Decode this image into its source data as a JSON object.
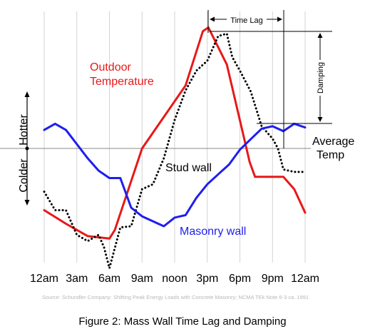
{
  "chart_data": {
    "type": "line",
    "caption": "Figure 2:  Mass Wall Time Lag and Damping",
    "source": "Source: Schundler Company: Shifting Peak Energy Loads with Concrete Masonry; NCMA TEk Note 6-3 ca. 1991",
    "x_ticks": [
      "12am",
      "3am",
      "6am",
      "9am",
      "noon",
      "3pm",
      "6pm",
      "9pm",
      "12am"
    ],
    "x_hours": [
      0,
      3,
      6,
      9,
      12,
      15,
      18,
      21,
      24
    ],
    "ylim": [
      -100,
      100
    ],
    "grid": "vertical",
    "y_axis_labels": {
      "up": "Hotter",
      "down": "Colder"
    },
    "baseline_label": [
      "Average",
      "Temp"
    ],
    "annotations": {
      "time_lag": "Time Lag",
      "damping": "Damping"
    },
    "series": [
      {
        "name": "Outdoor Temperature",
        "label_lines": [
          "Outdoor",
          "Temperature"
        ],
        "color": "#e81818",
        "style": "solid",
        "x": [
          0,
          2,
          4,
          6,
          6.5,
          9,
          13,
          14.6,
          15.1,
          16.8,
          18.9,
          19.4,
          21,
          22,
          23,
          24
        ],
        "y": [
          -50,
          -61,
          -71,
          -73,
          -66,
          0,
          51,
          95,
          98,
          68,
          -11,
          -23,
          -23,
          -23,
          -33,
          -52
        ]
      },
      {
        "name": "Stud wall",
        "label": "Stud wall",
        "color": "#000000",
        "style": "dotted",
        "x": [
          0,
          1,
          2,
          3,
          4,
          5,
          5.5,
          6,
          7,
          8,
          9,
          10,
          11,
          12,
          13,
          14,
          15,
          16,
          16.8,
          17.3,
          18,
          19,
          20,
          21,
          21.5,
          22,
          23,
          24
        ],
        "y": [
          -35,
          -50,
          -50,
          -70,
          -75,
          -70,
          -80,
          -97,
          -64,
          -63,
          -33,
          -29,
          -8,
          23,
          47,
          63,
          71,
          91,
          93,
          74,
          63,
          46,
          18,
          8,
          0,
          -17,
          -19,
          -19
        ]
      },
      {
        "name": "Masonry wall",
        "label": "Masonry wall",
        "color": "#1e1eee",
        "style": "solid",
        "x": [
          0,
          1,
          2,
          4,
          5,
          6,
          7,
          8,
          9,
          11,
          12,
          13,
          14,
          15,
          16,
          17,
          18,
          20,
          21,
          22,
          23,
          24
        ],
        "y": [
          15,
          20,
          15,
          -8,
          -18,
          -24,
          -24,
          -48,
          -55,
          -63,
          -56,
          -54,
          -40,
          -29,
          -21,
          -13,
          -1,
          16,
          18,
          14,
          20,
          17
        ]
      }
    ]
  }
}
